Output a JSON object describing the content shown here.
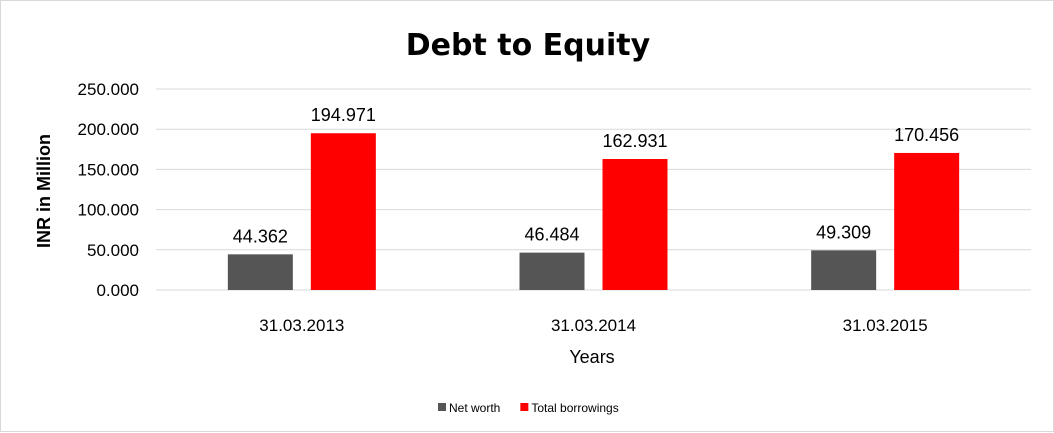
{
  "chart_data": {
    "type": "bar",
    "title": "Debt to Equity",
    "xlabel": "Years",
    "ylabel": "INR in Million",
    "categories": [
      "31.03.2013",
      "31.03.2014",
      "31.03.2015"
    ],
    "series": [
      {
        "name": "Net worth",
        "values": [
          44.362,
          46.484,
          49.309
        ],
        "color": "#555555"
      },
      {
        "name": "Total borrowings",
        "values": [
          194.971,
          162.931,
          170.456
        ],
        "color": "#ff0000"
      }
    ],
    "ylim": [
      0,
      250
    ],
    "yticks": [
      "0.000",
      "50.000",
      "100.000",
      "150.000",
      "200.000",
      "250.000"
    ],
    "grid": true,
    "legend_position": "bottom",
    "gridline_color": "#d9d9d9"
  }
}
